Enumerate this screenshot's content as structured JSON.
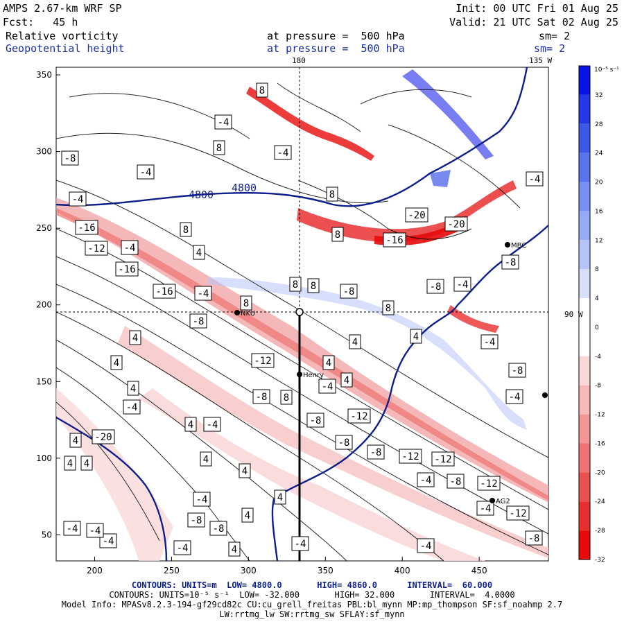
{
  "header": {
    "model": "AMPS 2.67-km WRF SP",
    "init": "Init: 00 UTC Fri 01 Aug 25",
    "fcst": "Fcst:   45 h",
    "valid": "Valid: 21 UTC Sat 02 Aug 25",
    "field1": "Relative vorticity",
    "field1_level": "at pressure =  500 hPa",
    "field1_sm": "sm= 2",
    "field2": "Geopotential height",
    "field2_level": "at pressure =  500 hPa",
    "field2_sm": "sm= 2",
    "lon_180": "180",
    "lon_135w": "135 W",
    "lon_90w": "90 W"
  },
  "colorbar": {
    "unit_label": "10⁻⁵ s⁻¹",
    "levels": [
      32,
      28,
      24,
      20,
      16,
      12,
      8,
      4,
      0,
      -4,
      -8,
      -12,
      -16,
      -20,
      -24,
      -28,
      -32
    ],
    "colors": [
      "#0a14e6",
      "#2438e8",
      "#3e58ea",
      "#5a74ee",
      "#7890f2",
      "#96abf6",
      "#b6c4fa",
      "#d6def8",
      "#ffffff",
      "#ffffff",
      "#fad8d8",
      "#f6b8b8",
      "#f29696",
      "#ee7474",
      "#ea5252",
      "#e83030",
      "#e60a0a"
    ]
  },
  "stations": [
    {
      "name": "MBC"
    },
    {
      "name": "NKU"
    },
    {
      "name": "Henry"
    },
    {
      "name": "AG2"
    }
  ],
  "height_contours": [
    "4800",
    "4800"
  ],
  "vorticity_labels": [
    "8",
    "-4",
    "8",
    "-4",
    "-8",
    "-4",
    "-4",
    "-16",
    "-12",
    "-4",
    "-16",
    "-16",
    "-4",
    "-8",
    "8",
    "8",
    "4",
    "8",
    "8",
    "-8",
    "8",
    "4",
    "4",
    "4",
    "4",
    "-12",
    "8",
    "-8",
    "-4",
    "-8",
    "-12",
    "-8",
    "-8",
    "-12",
    "-12",
    "-4",
    "-8",
    "-12",
    "-4",
    "-12",
    "-8",
    "-4",
    "-4",
    "4",
    "4",
    "4",
    "4",
    "4",
    "4",
    "4",
    "4",
    "4",
    "4",
    "4",
    "-4",
    "-4",
    "-4",
    "-4",
    "-8",
    "-8",
    "-4",
    "4",
    "-4",
    "-4",
    "-20",
    "-16",
    "-20",
    "-20",
    "-8",
    "-8",
    "-4",
    "-8",
    "-4",
    "-4",
    "-4",
    "8",
    "8"
  ],
  "footer": {
    "line1": "CONTOURS: UNITS=m  LOW= 4800.0       HIGH= 4860.0      INTERVAL=  60.000",
    "line2": "CONTOURS: UNITS=10⁻⁵ s⁻¹  LOW= -32.000       HIGH= 32.000       INTERVAL=  4.0000",
    "line3": "Model Info: MPASv8.2.3-194-gf29cd82c CU:cu_grell_freitas PBL:bl_mynn MP:mp_thompson SF:sf_noahmp 2.7",
    "line4": "LW:rrtmg_lw SW:rrtmg_sw SFLAY:sf_mynn"
  },
  "colors": {
    "height_contour": "#0d1f8c",
    "header_blue": "#1a2fa8"
  },
  "chart_data": {
    "type": "heatmap",
    "title": "Relative vorticity / Geopotential height at 500 hPa",
    "xlim": [
      175,
      495
    ],
    "ylim": [
      33,
      355
    ],
    "xticks": [
      200,
      250,
      300,
      350,
      400,
      450
    ],
    "yticks": [
      50,
      100,
      150,
      200,
      250,
      300,
      350
    ],
    "vorticity_range": [
      -32,
      32
    ],
    "vorticity_interval": 4,
    "height_range": [
      4800,
      4860
    ],
    "height_interval": 60,
    "cross_section": {
      "x": 334,
      "y": 196
    },
    "series": [
      {
        "name": "Relative vorticity",
        "units": "10⁻⁵ s⁻¹"
      },
      {
        "name": "Geopotential height",
        "units": "m"
      }
    ]
  }
}
